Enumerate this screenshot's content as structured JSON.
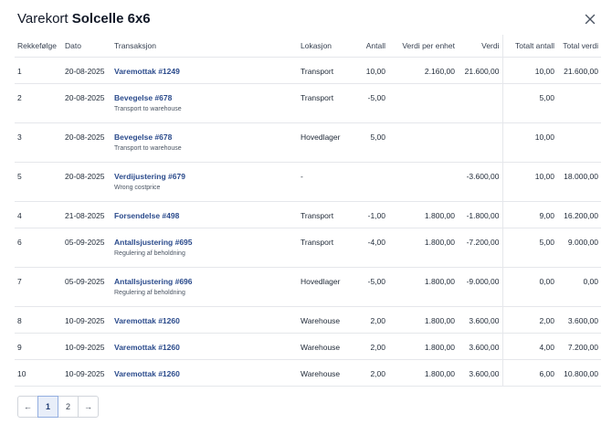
{
  "dialog": {
    "title_prefix": "Varekort",
    "title_item": "Solcelle 6x6"
  },
  "table": {
    "headers": {
      "seq": "Rekkefølge",
      "date": "Dato",
      "transaction": "Transaksjon",
      "location": "Lokasjon",
      "qty": "Antall",
      "unit_value": "Verdi per enhet",
      "value": "Verdi",
      "total_qty": "Totalt antall",
      "total_value": "Total verdi"
    },
    "rows": [
      {
        "seq": "1",
        "date": "20-08-2025",
        "tx": "Varemottak #1249",
        "note": "",
        "loc": "Transport",
        "qty": "10,00",
        "unit": "2.160,00",
        "val": "21.600,00",
        "tqty": "10,00",
        "tval": "21.600,00"
      },
      {
        "seq": "2",
        "date": "20-08-2025",
        "tx": "Bevegelse #678",
        "note": "Transport to warehouse",
        "loc": "Transport",
        "qty": "-5,00",
        "unit": "",
        "val": "",
        "tqty": "5,00",
        "tval": ""
      },
      {
        "seq": "3",
        "date": "20-08-2025",
        "tx": "Bevegelse #678",
        "note": "Transport to warehouse",
        "loc": "Hovedlager",
        "qty": "5,00",
        "unit": "",
        "val": "",
        "tqty": "10,00",
        "tval": ""
      },
      {
        "seq": "5",
        "date": "20-08-2025",
        "tx": "Verdijustering #679",
        "note": "Wrong costprice",
        "loc": "-",
        "qty": "",
        "unit": "",
        "val": "-3.600,00",
        "tqty": "10,00",
        "tval": "18.000,00"
      },
      {
        "seq": "4",
        "date": "21-08-2025",
        "tx": "Forsendelse #498",
        "note": "",
        "loc": "Transport",
        "qty": "-1,00",
        "unit": "1.800,00",
        "val": "-1.800,00",
        "tqty": "9,00",
        "tval": "16.200,00"
      },
      {
        "seq": "6",
        "date": "05-09-2025",
        "tx": "Antallsjustering #695",
        "note": "Regulering af beholdning",
        "loc": "Transport",
        "qty": "-4,00",
        "unit": "1.800,00",
        "val": "-7.200,00",
        "tqty": "5,00",
        "tval": "9.000,00"
      },
      {
        "seq": "7",
        "date": "05-09-2025",
        "tx": "Antallsjustering #696",
        "note": "Regulering af beholdning",
        "loc": "Hovedlager",
        "qty": "-5,00",
        "unit": "1.800,00",
        "val": "-9.000,00",
        "tqty": "0,00",
        "tval": "0,00"
      },
      {
        "seq": "8",
        "date": "10-09-2025",
        "tx": "Varemottak #1260",
        "note": "",
        "loc": "Warehouse",
        "qty": "2,00",
        "unit": "1.800,00",
        "val": "3.600,00",
        "tqty": "2,00",
        "tval": "3.600,00"
      },
      {
        "seq": "9",
        "date": "10-09-2025",
        "tx": "Varemottak #1260",
        "note": "",
        "loc": "Warehouse",
        "qty": "2,00",
        "unit": "1.800,00",
        "val": "3.600,00",
        "tqty": "4,00",
        "tval": "7.200,00"
      },
      {
        "seq": "10",
        "date": "10-09-2025",
        "tx": "Varemottak #1260",
        "note": "",
        "loc": "Warehouse",
        "qty": "2,00",
        "unit": "1.800,00",
        "val": "3.600,00",
        "tqty": "6,00",
        "tval": "10.800,00"
      }
    ]
  },
  "pagination": {
    "prev": "←",
    "pages": [
      "1",
      "2"
    ],
    "current": "1",
    "next": "→"
  },
  "icons": {
    "close": "close-icon"
  },
  "colors": {
    "link": "#2b4b8c",
    "active_page_bg": "#e8eef9"
  }
}
